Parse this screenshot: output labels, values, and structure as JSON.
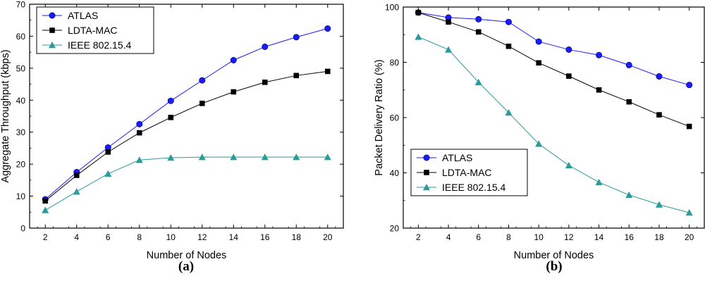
{
  "chart_data": [
    {
      "type": "line",
      "panel_label": "(a)",
      "xlabel": "Number of Nodes",
      "ylabel": "Aggregate Throughput (kbps)",
      "x": [
        2,
        4,
        6,
        8,
        10,
        12,
        14,
        16,
        18,
        20
      ],
      "xlim": [
        1,
        21
      ],
      "ylim": [
        0,
        70
      ],
      "xticks": [
        2,
        4,
        6,
        8,
        10,
        12,
        14,
        16,
        18,
        20
      ],
      "yticks": [
        0,
        10,
        20,
        30,
        40,
        50,
        60,
        70
      ],
      "grid": false,
      "legend_position": "top-left",
      "series": [
        {
          "name": "ATLAS",
          "color": "#1a1aff",
          "marker": "circle",
          "values": [
            9,
            17.5,
            25.2,
            32.5,
            39.8,
            46.2,
            52.5,
            56.7,
            59.7,
            62.4
          ]
        },
        {
          "name": "LDTA-MAC",
          "color": "#000000",
          "marker": "square",
          "values": [
            8.5,
            16.5,
            23.8,
            29.8,
            34.6,
            39,
            42.6,
            45.6,
            47.7,
            49
          ]
        },
        {
          "name": "IEEE 802.15.4",
          "color": "#2b9a9a",
          "marker": "triangle",
          "values": [
            5.6,
            11.4,
            17,
            21.3,
            22,
            22.2,
            22.2,
            22.2,
            22.2,
            22.2
          ]
        }
      ]
    },
    {
      "type": "line",
      "panel_label": "(b)",
      "xlabel": "Number of Nodes",
      "ylabel": "Packet Delivery Ratio (%)",
      "x": [
        2,
        4,
        6,
        8,
        10,
        12,
        14,
        16,
        18,
        20
      ],
      "xlim": [
        1,
        21
      ],
      "ylim": [
        20,
        100
      ],
      "xticks": [
        2,
        4,
        6,
        8,
        10,
        12,
        14,
        16,
        18,
        20
      ],
      "yticks": [
        20,
        40,
        60,
        80,
        100
      ],
      "grid": false,
      "legend_position": "bottom-left",
      "series": [
        {
          "name": "ATLAS",
          "color": "#1a1aff",
          "marker": "circle",
          "values": [
            98,
            96.2,
            95.6,
            94.6,
            87.5,
            84.6,
            82.6,
            79,
            74.9,
            71.8
          ]
        },
        {
          "name": "LDTA-MAC",
          "color": "#000000",
          "marker": "square",
          "values": [
            98,
            94.6,
            91,
            85.8,
            79.8,
            75,
            70,
            65.7,
            61,
            56.8
          ]
        },
        {
          "name": "IEEE 802.15.4",
          "color": "#2b9a9a",
          "marker": "triangle",
          "values": [
            89.2,
            84.6,
            72.8,
            61.8,
            50.5,
            42.7,
            36.6,
            32,
            28.5,
            25.6
          ]
        }
      ]
    }
  ]
}
